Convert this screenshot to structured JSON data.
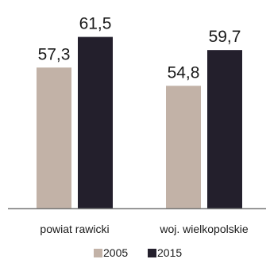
{
  "chart_data": {
    "type": "bar",
    "categories": [
      "powiat rawicki",
      "woj. wielkopolskie"
    ],
    "series": [
      {
        "name": "2005",
        "values": [
          57.3,
          54.8
        ],
        "labels": [
          "57,3",
          "54,8"
        ],
        "color": "#c2b2a7"
      },
      {
        "name": "2015",
        "values": [
          61.5,
          59.7
        ],
        "labels": [
          "61,5",
          "59,7"
        ],
        "color": "#231f2c"
      }
    ],
    "ylim": [
      38,
      62
    ],
    "grid": false,
    "legend": "bottom-center",
    "axis_color": "#7a7a7a"
  }
}
